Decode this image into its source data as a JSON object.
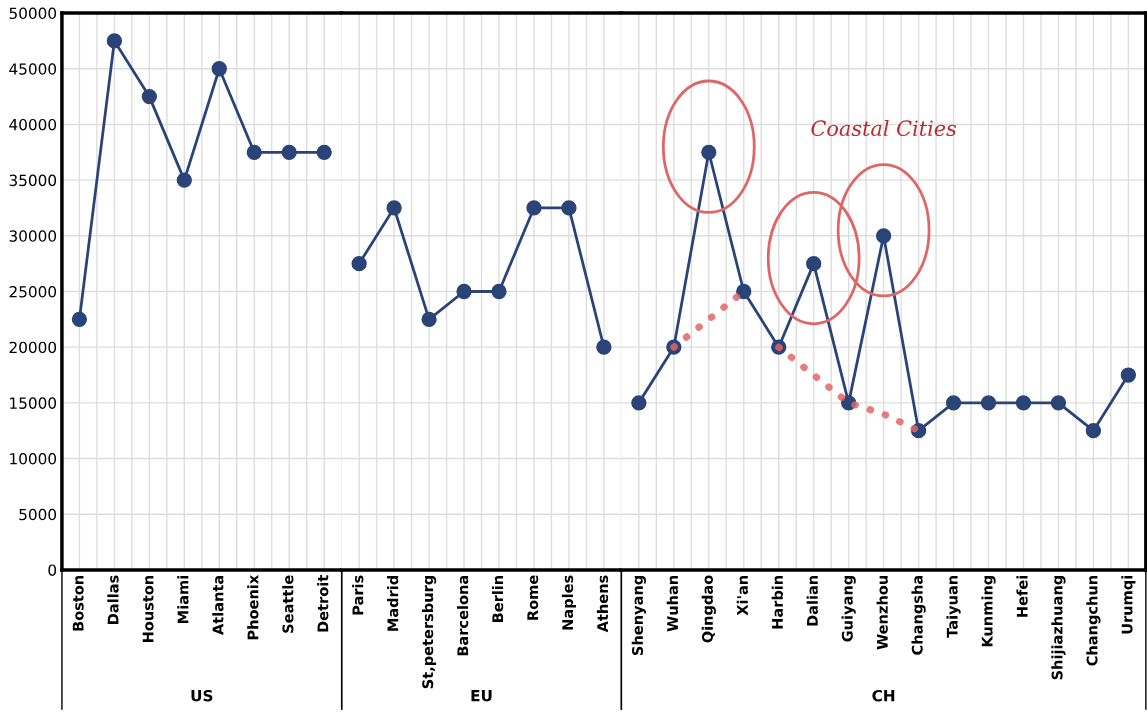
{
  "chart_data": [
    {
      "type": "line",
      "xlabel": "US",
      "categories": [
        "Boston",
        "Dallas",
        "Houston",
        "Miami",
        "Atlanta",
        "Phoenix",
        "Seattle",
        "Detroit"
      ],
      "series": [
        {
          "color": "#2a4478",
          "marker": "circle",
          "line_style": "solid",
          "values": [
            22500,
            47500,
            42500,
            35000,
            45000,
            37500,
            37500,
            37500
          ]
        }
      ],
      "ylim": [
        0,
        50000
      ],
      "yticks": [
        0,
        5000,
        10000,
        15000,
        20000,
        25000,
        30000,
        35000,
        40000,
        45000,
        50000
      ],
      "grid": true
    },
    {
      "type": "line",
      "xlabel": "EU",
      "categories": [
        "Paris",
        "Madrid",
        "St,petersburg",
        "Barcelona",
        "Berlin",
        "Rome",
        "Naples",
        "Athens"
      ],
      "series": [
        {
          "color": "#2a4478",
          "marker": "circle",
          "line_style": "solid",
          "values": [
            27500,
            32500,
            22500,
            25000,
            25000,
            32500,
            32500,
            20000
          ]
        }
      ],
      "ylim": [
        0,
        50000
      ],
      "yticks": [
        0,
        5000,
        10000,
        15000,
        20000,
        25000,
        30000,
        35000,
        40000,
        45000,
        50000
      ],
      "grid": true,
      "tick_labels": "x"
    },
    {
      "type": "line",
      "xlabel": "CH",
      "categories": [
        "Shenyang",
        "Wuhan",
        "Qingdao",
        "Xi'an",
        "Harbin",
        "Dalian",
        "Guiyang",
        "Wenzhou",
        "Changsha",
        "Taiyuan",
        "Kunming",
        "Hefei",
        "Shijiazhuang",
        "Changchun",
        "Urumqi"
      ],
      "series": [
        {
          "color": "#2a4478",
          "marker": "circle",
          "line_style": "solid",
          "values": [
            15000,
            20000,
            37500,
            25000,
            20000,
            27500,
            15000,
            30000,
            12500,
            15000,
            15000,
            15000,
            15000,
            12500,
            17500
          ]
        },
        {
          "color": "#e06666",
          "marker": "none",
          "line_style": "dotted",
          "values": [
            null,
            20000,
            22500,
            25000,
            null,
            null,
            null,
            null,
            null,
            null,
            null,
            null,
            null,
            null,
            null
          ]
        },
        {
          "color": "#e06666",
          "marker": "none",
          "line_style": "dotted",
          "values": [
            null,
            null,
            null,
            null,
            20000,
            17500,
            15000,
            14000,
            12500,
            null,
            null,
            null,
            null,
            null,
            null
          ]
        }
      ],
      "ylim": [
        0,
        50000
      ],
      "yticks": [
        0,
        5000,
        10000,
        15000,
        20000,
        25000,
        30000,
        35000,
        40000,
        45000,
        50000
      ],
      "grid": true,
      "tick_labels": "x",
      "annotations": [
        "Coastal Cities"
      ]
    }
  ]
}
